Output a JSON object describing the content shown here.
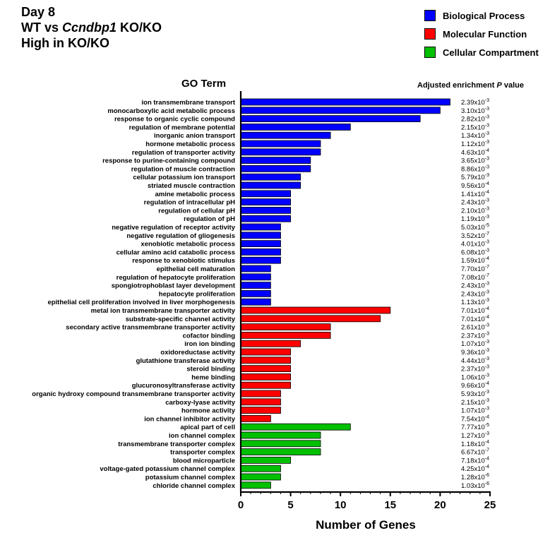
{
  "header": {
    "line1": "Day 8",
    "line2_prefix": "WT vs ",
    "line2_gene": "Ccndbp1",
    "line2_suffix": " KO/KO",
    "line3": "High in KO/KO"
  },
  "colors": {
    "Biological Process": "#0000ff",
    "Molecular Function": "#ff0000",
    "Cellular Compartment": "#00c000"
  },
  "legend": [
    {
      "name": "Biological Process",
      "color": "#0000ff"
    },
    {
      "name": "Molecular Function",
      "color": "#ff0000"
    },
    {
      "name": "Cellular Compartment",
      "color": "#00c000"
    }
  ],
  "chart_data": {
    "type": "bar",
    "orientation": "horizontal",
    "ytitle": "GO Term",
    "xlabel": "Number of Genes",
    "pvalue_header_prefix": "Adjusted enrichment ",
    "pvalue_header_italic": "P",
    "pvalue_header_suffix": " value",
    "xlim": [
      0,
      25
    ],
    "xticks": [
      0,
      5,
      10,
      15,
      20,
      25
    ],
    "grid": false,
    "legend_position": "top-right",
    "rows": [
      {
        "term": "ion transmembrane transport",
        "value": 21,
        "category": "Biological Process",
        "p_mant": "2.39x10",
        "p_exp": "-3"
      },
      {
        "term": "monocarboxylic acid metabolic process",
        "value": 20,
        "category": "Biological Process",
        "p_mant": "3.10x10",
        "p_exp": "-3"
      },
      {
        "term": "response to organic cyclic compound",
        "value": 18,
        "category": "Biological Process",
        "p_mant": "2.82x10",
        "p_exp": "-3"
      },
      {
        "term": "regulation of membrane potential",
        "value": 11,
        "category": "Biological Process",
        "p_mant": "2.15x10",
        "p_exp": "-3"
      },
      {
        "term": "inorganic anion transport",
        "value": 9,
        "category": "Biological Process",
        "p_mant": "1.34x10",
        "p_exp": "-3"
      },
      {
        "term": "hormone metabolic process",
        "value": 8,
        "category": "Biological Process",
        "p_mant": "1.12x10",
        "p_exp": "-3"
      },
      {
        "term": "regulation of transporter activity",
        "value": 8,
        "category": "Biological Process",
        "p_mant": "4.63x10",
        "p_exp": "-4"
      },
      {
        "term": "response to purine-containing compound",
        "value": 7,
        "category": "Biological Process",
        "p_mant": "3.65x10",
        "p_exp": "-3"
      },
      {
        "term": "regulation of muscle contraction",
        "value": 7,
        "category": "Biological Process",
        "p_mant": "8.86x10",
        "p_exp": "-3"
      },
      {
        "term": "cellular potassium ion transport",
        "value": 6,
        "category": "Biological Process",
        "p_mant": "5.79x10",
        "p_exp": "-3"
      },
      {
        "term": "striated muscle contraction",
        "value": 6,
        "category": "Biological Process",
        "p_mant": "9.56x10",
        "p_exp": "-4"
      },
      {
        "term": "amine metabolic process",
        "value": 5,
        "category": "Biological Process",
        "p_mant": "1.41x10",
        "p_exp": "-4"
      },
      {
        "term": "regulation of intracellular pH",
        "value": 5,
        "category": "Biological Process",
        "p_mant": "2.43x10",
        "p_exp": "-3"
      },
      {
        "term": "regulation of cellular pH",
        "value": 5,
        "category": "Biological Process",
        "p_mant": "2.10x10",
        "p_exp": "-3"
      },
      {
        "term": "regulation of pH",
        "value": 5,
        "category": "Biological Process",
        "p_mant": "1.19x10",
        "p_exp": "-3"
      },
      {
        "term": "negative regulation of receptor activity",
        "value": 4,
        "category": "Biological Process",
        "p_mant": "5.03x10",
        "p_exp": "-5"
      },
      {
        "term": "negative regulation of gliogenesis",
        "value": 4,
        "category": "Biological Process",
        "p_mant": "3.52x10",
        "p_exp": "-7"
      },
      {
        "term": "xenobiotic metabolic process",
        "value": 4,
        "category": "Biological Process",
        "p_mant": "4.01x10",
        "p_exp": "-3"
      },
      {
        "term": "cellular amino acid catabolic process",
        "value": 4,
        "category": "Biological Process",
        "p_mant": "6.08x10",
        "p_exp": "-3"
      },
      {
        "term": "response to xenobiotic stimulus",
        "value": 4,
        "category": "Biological Process",
        "p_mant": "1.59x10",
        "p_exp": "-4"
      },
      {
        "term": "epithelial cell maturation",
        "value": 3,
        "category": "Biological Process",
        "p_mant": "7.70x10",
        "p_exp": "-7"
      },
      {
        "term": "regulation of hepatocyte proliferation",
        "value": 3,
        "category": "Biological Process",
        "p_mant": "7.08x10",
        "p_exp": "-7"
      },
      {
        "term": "spongiotrophoblast layer development",
        "value": 3,
        "category": "Biological Process",
        "p_mant": "2.43x10",
        "p_exp": "-3"
      },
      {
        "term": "hepatocyte proliferation",
        "value": 3,
        "category": "Biological Process",
        "p_mant": "2.43x10",
        "p_exp": "-3"
      },
      {
        "term": "epithelial cell proliferation involved in liver morphogenesis",
        "value": 3,
        "category": "Biological Process",
        "p_mant": "1.13x10",
        "p_exp": "-3"
      },
      {
        "term": "metal ion transmembrane transporter activity",
        "value": 15,
        "category": "Molecular Function",
        "p_mant": "7.01x10",
        "p_exp": "-4"
      },
      {
        "term": "substrate-specific channel activity",
        "value": 14,
        "category": "Molecular Function",
        "p_mant": "7.01x10",
        "p_exp": "-4"
      },
      {
        "term": "secondary active transmembrane transporter activity",
        "value": 9,
        "category": "Molecular Function",
        "p_mant": "2.61x10",
        "p_exp": "-3"
      },
      {
        "term": "cofactor binding",
        "value": 9,
        "category": "Molecular Function",
        "p_mant": "2.37x10",
        "p_exp": "-3"
      },
      {
        "term": "iron ion binding",
        "value": 6,
        "category": "Molecular Function",
        "p_mant": "1.07x10",
        "p_exp": "-3"
      },
      {
        "term": "oxidoreductase activity",
        "value": 5,
        "category": "Molecular Function",
        "p_mant": "9.36x10",
        "p_exp": "-3"
      },
      {
        "term": "glutathione transferase activity",
        "value": 5,
        "category": "Molecular Function",
        "p_mant": "4.44x10",
        "p_exp": "-3"
      },
      {
        "term": "steroid binding",
        "value": 5,
        "category": "Molecular Function",
        "p_mant": "2.37x10",
        "p_exp": "-3"
      },
      {
        "term": "heme binding",
        "value": 5,
        "category": "Molecular Function",
        "p_mant": "1.06x10",
        "p_exp": "-3"
      },
      {
        "term": "glucuronosyltransferase activity",
        "value": 5,
        "category": "Molecular Function",
        "p_mant": "9.66x10",
        "p_exp": "-4"
      },
      {
        "term": "organic hydroxy compound transmembrane transporter activity",
        "value": 4,
        "category": "Molecular Function",
        "p_mant": "5.93x10",
        "p_exp": "-3"
      },
      {
        "term": "carboxy-lyase activity",
        "value": 4,
        "category": "Molecular Function",
        "p_mant": "2.15x10",
        "p_exp": "-3"
      },
      {
        "term": "hormone activity",
        "value": 4,
        "category": "Molecular Function",
        "p_mant": "1.07x10",
        "p_exp": "-3"
      },
      {
        "term": "ion channel inhibitor activity",
        "value": 3,
        "category": "Molecular Function",
        "p_mant": "7.54x10",
        "p_exp": "-4"
      },
      {
        "term": "apical part of cell",
        "value": 11,
        "category": "Cellular Compartment",
        "p_mant": "7.77x10",
        "p_exp": "-5"
      },
      {
        "term": "ion channel complex",
        "value": 8,
        "category": "Cellular Compartment",
        "p_mant": "1.27x10",
        "p_exp": "-3"
      },
      {
        "term": "transmembrane transporter complex",
        "value": 8,
        "category": "Cellular Compartment",
        "p_mant": "1.18x10",
        "p_exp": "-4"
      },
      {
        "term": "transporter complex",
        "value": 8,
        "category": "Cellular Compartment",
        "p_mant": "6.67x10",
        "p_exp": "-7"
      },
      {
        "term": "blood microparticle",
        "value": 5,
        "category": "Cellular Compartment",
        "p_mant": "7.18x10",
        "p_exp": "-4"
      },
      {
        "term": "voltage-gated potassium channel complex",
        "value": 4,
        "category": "Cellular Compartment",
        "p_mant": "4.25x10",
        "p_exp": "-4"
      },
      {
        "term": "potassium channel complex",
        "value": 4,
        "category": "Cellular Compartment",
        "p_mant": "1.28x10",
        "p_exp": "-6"
      },
      {
        "term": "chloride channel complex",
        "value": 3,
        "category": "Cellular Compartment",
        "p_mant": "1.03x10",
        "p_exp": "-6"
      }
    ]
  }
}
